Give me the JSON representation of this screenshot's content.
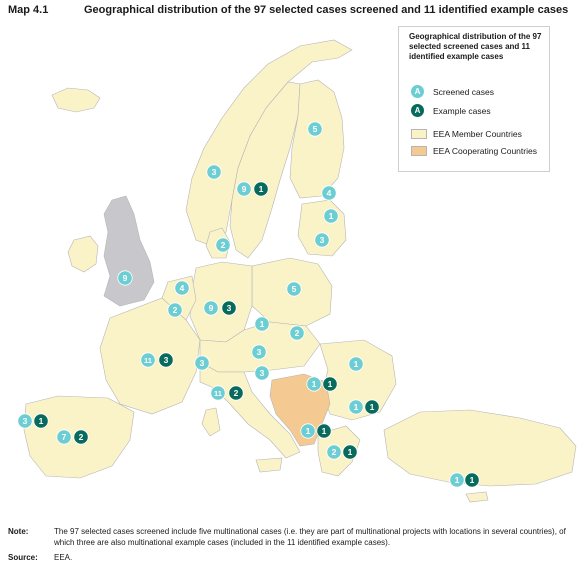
{
  "header": {
    "map_label": "Map 4.1",
    "title": "Geographical distribution of the 97 selected cases screened and 11 identified example cases"
  },
  "colors": {
    "sea": "#ffffff",
    "eea_member": "#fbf3c8",
    "eea_cooperating": "#f5c992",
    "non_eea": "#c8c8cc",
    "border": "#b5b5b5",
    "screened": "#6ccdd3",
    "example": "#086a5c"
  },
  "legend": {
    "title": "Geographical distribution of the 97 selected screened cases and 11 identified example cases",
    "screened_symbol": "A",
    "screened_label": "Screened cases",
    "example_symbol": "A",
    "example_label": "Example cases",
    "member_label": "EEA Member Countries",
    "cooperating_label": "EEA Cooperating Countries"
  },
  "markers": [
    {
      "type": "screened",
      "value": "5"
    },
    {
      "type": "screened",
      "value": "3"
    },
    {
      "type": "screened",
      "value": "9"
    },
    {
      "type": "example",
      "value": "1"
    },
    {
      "type": "screened",
      "value": "4"
    },
    {
      "type": "screened",
      "value": "1"
    },
    {
      "type": "screened",
      "value": "3"
    },
    {
      "type": "screened",
      "value": "2"
    },
    {
      "type": "screened",
      "value": "9"
    },
    {
      "type": "screened",
      "value": "4"
    },
    {
      "type": "screened",
      "value": "2"
    },
    {
      "type": "screened",
      "value": "9"
    },
    {
      "type": "example",
      "value": "3"
    },
    {
      "type": "screened",
      "value": "5"
    },
    {
      "type": "screened",
      "value": "1"
    },
    {
      "type": "screened",
      "value": "2"
    },
    {
      "type": "screened",
      "value": "11"
    },
    {
      "type": "example",
      "value": "3"
    },
    {
      "type": "screened",
      "value": "3"
    },
    {
      "type": "screened",
      "value": "3"
    },
    {
      "type": "screened",
      "value": "3"
    },
    {
      "type": "screened",
      "value": "1"
    },
    {
      "type": "screened",
      "value": "1"
    },
    {
      "type": "example",
      "value": "1"
    },
    {
      "type": "screened",
      "value": "11"
    },
    {
      "type": "example",
      "value": "2"
    },
    {
      "type": "screened",
      "value": "1"
    },
    {
      "type": "example",
      "value": "1"
    },
    {
      "type": "screened",
      "value": "3"
    },
    {
      "type": "example",
      "value": "1"
    },
    {
      "type": "screened",
      "value": "7"
    },
    {
      "type": "example",
      "value": "2"
    },
    {
      "type": "screened",
      "value": "1"
    },
    {
      "type": "example",
      "value": "1"
    },
    {
      "type": "screened",
      "value": "2"
    },
    {
      "type": "example",
      "value": "1"
    },
    {
      "type": "screened",
      "value": "1"
    },
    {
      "type": "example",
      "value": "1"
    }
  ],
  "footer": {
    "note_label": "Note:",
    "note_text": "The 97 selected cases screened include five multinational cases (i.e. they are part of multinational projects with locations in several countries), of which three are also multinational example cases (included in the 11 identified example cases).",
    "source_label": "Source:",
    "source_text": "EEA."
  }
}
